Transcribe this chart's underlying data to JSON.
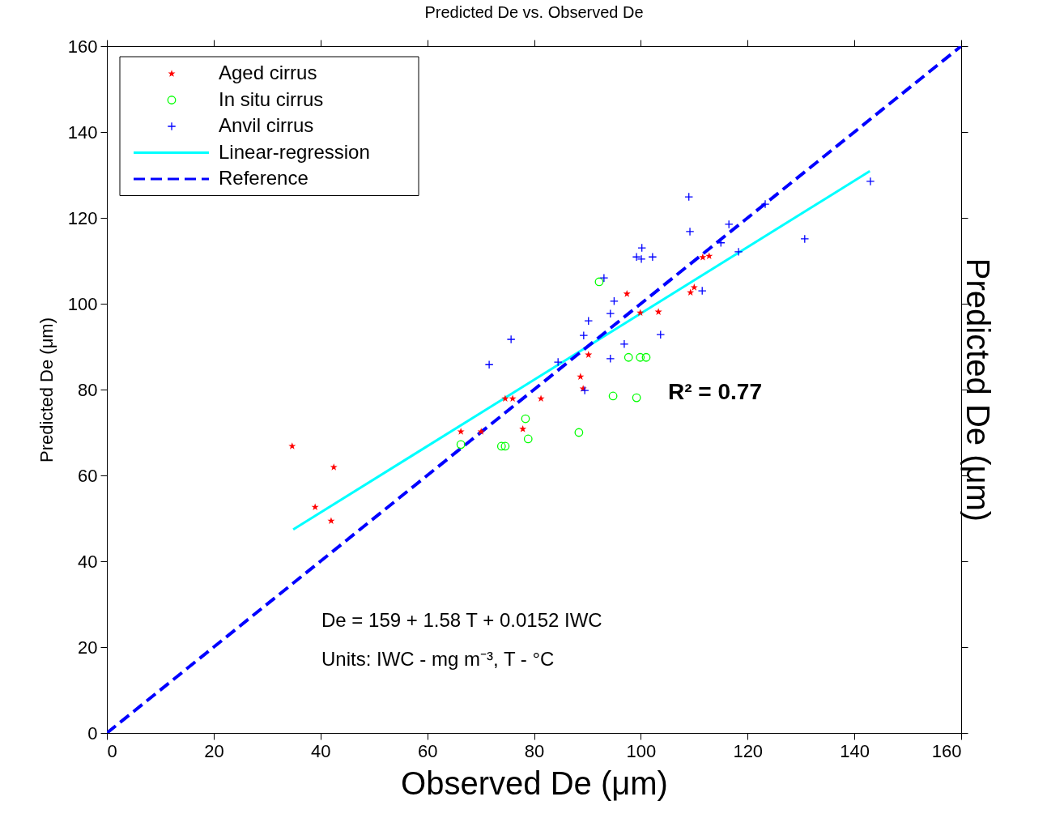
{
  "chart_data": {
    "type": "scatter",
    "title": "Predicted De vs. Observed De",
    "xlabel": "Observed De (μm)",
    "ylabel": "Predicted De (μm)",
    "y2label": "Predicted De (μm)",
    "xlim": [
      0,
      160
    ],
    "ylim": [
      0,
      160
    ],
    "xticks": [
      0,
      20,
      40,
      60,
      80,
      100,
      120,
      140,
      160
    ],
    "yticks": [
      0,
      20,
      40,
      60,
      80,
      100,
      120,
      140,
      160
    ],
    "grid": false,
    "legend": "top left",
    "series": [
      {
        "name": "Aged cirrus",
        "marker": "star",
        "color": "#ff0000",
        "x": [
          34.7,
          39.0,
          42.5,
          42.0,
          66.3,
          70.1,
          74.6,
          76.0,
          81.3,
          77.9,
          88.7,
          89.2,
          90.2,
          97.4,
          99.9,
          103.3,
          109.3,
          110.0,
          111.6,
          112.8
        ],
        "values": [
          66.8,
          52.6,
          61.9,
          49.4,
          70.2,
          70.2,
          77.9,
          77.9,
          77.9,
          70.8,
          83.0,
          80.2,
          88.1,
          102.3,
          97.9,
          98.1,
          102.6,
          103.8,
          110.8,
          111.1
        ]
      },
      {
        "name": "In situ cirrus",
        "marker": "circle",
        "color": "#00ff00",
        "x": [
          66.3,
          73.9,
          74.6,
          78.4,
          78.9,
          88.4,
          92.2,
          94.8,
          99.2,
          97.7,
          99.9,
          101.0
        ],
        "values": [
          67.2,
          66.8,
          66.8,
          73.2,
          68.5,
          70.0,
          105.1,
          78.5,
          78.1,
          87.5,
          87.5,
          87.5
        ]
      },
      {
        "name": "Anvil cirrus",
        "marker": "cross",
        "color": "#0000ff",
        "x": [
          71.6,
          75.7,
          84.5,
          89.5,
          89.3,
          90.2,
          94.3,
          95.0,
          93.1,
          94.3,
          96.9,
          99.2,
          100.1,
          102.2,
          100.2,
          103.7,
          109.0,
          109.2,
          111.5,
          115.0,
          116.5,
          118.3,
          123.3,
          130.7,
          143.0
        ],
        "values": [
          85.8,
          91.7,
          86.4,
          79.8,
          92.6,
          96.0,
          97.7,
          100.6,
          106.0,
          87.2,
          90.6,
          110.9,
          110.4,
          110.9,
          113.0,
          92.8,
          124.9,
          116.8,
          103.0,
          114.2,
          118.5,
          112.1,
          123.2,
          115.1,
          128.5
        ]
      },
      {
        "name": "Linear-regression",
        "type": "line",
        "line_style": "solid",
        "color": "#00ffff",
        "x": [
          34.9,
          142.9
        ],
        "values": [
          47.4,
          130.9
        ]
      },
      {
        "name": "Reference",
        "type": "line",
        "line_style": "dashed",
        "color": "#0000ff",
        "x": [
          0,
          160
        ],
        "values": [
          0,
          160
        ]
      }
    ],
    "annotations": [
      "R² = 0.77",
      "De = 159 + 1.58 T + 0.0152 IWC",
      "Units: IWC - mg m⁻³,  T - °C"
    ]
  }
}
